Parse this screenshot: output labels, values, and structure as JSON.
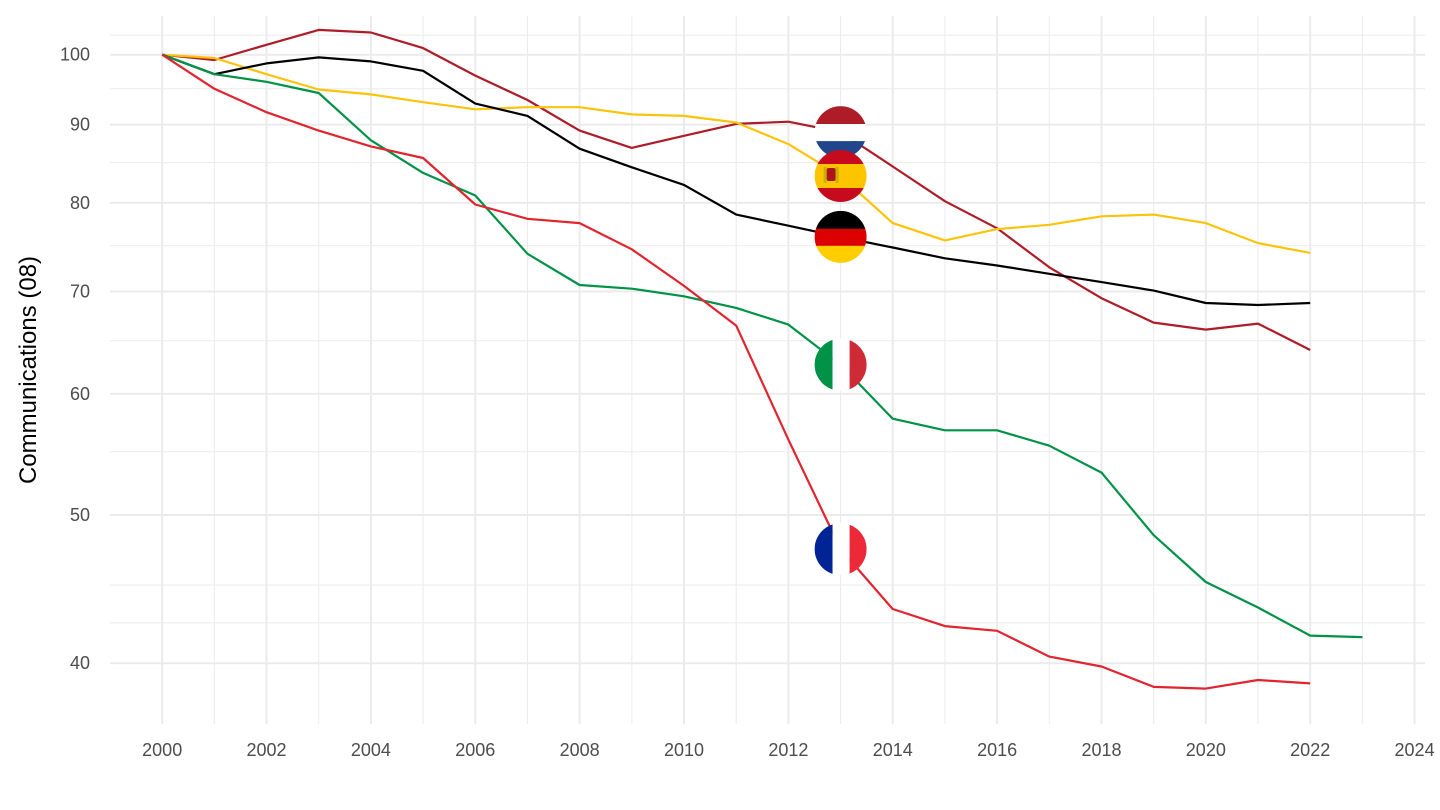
{
  "chart_data": {
    "type": "line",
    "title": "",
    "xlabel": "",
    "ylabel": "Communications (08)",
    "y_scale": "log",
    "xlim": [
      1999,
      2024.2
    ],
    "ylim": [
      36.5,
      106
    ],
    "x_ticks": [
      2000,
      2002,
      2004,
      2006,
      2008,
      2010,
      2012,
      2014,
      2016,
      2018,
      2020,
      2022,
      2024
    ],
    "y_ticks": [
      40,
      50,
      60,
      70,
      80,
      90,
      100
    ],
    "grid": true,
    "legend": "flag markers at x=2013",
    "series": [
      {
        "flag": "netherlands-flag",
        "color": "#ae1c28",
        "x": [
          2000,
          2001,
          2002,
          2003,
          2004,
          2005,
          2006,
          2007,
          2008,
          2009,
          2010,
          2011,
          2012,
          2013,
          2014,
          2015,
          2016,
          2017,
          2018,
          2019,
          2020,
          2021,
          2022
        ],
        "values": [
          100,
          99.2,
          101.5,
          103.8,
          103.4,
          101.0,
          96.9,
          93.4,
          89.2,
          86.9,
          88.5,
          90.1,
          90.4,
          89.0,
          84.5,
          80.2,
          77.0,
          72.6,
          69.3,
          66.8,
          66.1,
          66.7,
          64.1
        ]
      },
      {
        "flag": "spain-flag",
        "color": "#fcc30b",
        "x": [
          2000,
          2001,
          2002,
          2003,
          2004,
          2005,
          2006,
          2007,
          2008,
          2009,
          2010,
          2011,
          2012,
          2013,
          2014,
          2015,
          2016,
          2017,
          2018,
          2019,
          2020,
          2021,
          2022
        ],
        "values": [
          100,
          99.5,
          97.1,
          94.9,
          94.2,
          93.1,
          92.1,
          92.4,
          92.4,
          91.4,
          91.2,
          90.3,
          87.4,
          83.3,
          77.6,
          75.6,
          76.9,
          77.4,
          78.4,
          78.6,
          77.6,
          75.3,
          74.2
        ]
      },
      {
        "flag": "germany-flag",
        "color": "#000000",
        "x": [
          2000,
          2001,
          2002,
          2003,
          2004,
          2005,
          2006,
          2007,
          2008,
          2009,
          2010,
          2011,
          2012,
          2013,
          2014,
          2015,
          2016,
          2017,
          2018,
          2019,
          2020,
          2021,
          2022
        ],
        "values": [
          100,
          97.1,
          98.7,
          99.6,
          99.0,
          97.6,
          92.9,
          91.2,
          86.8,
          84.4,
          82.2,
          78.6,
          77.3,
          76.0,
          74.8,
          73.6,
          72.8,
          71.9,
          71.0,
          70.1,
          68.8,
          68.6,
          68.8
        ]
      },
      {
        "flag": "italy-flag",
        "color": "#009246",
        "x": [
          2000,
          2001,
          2002,
          2003,
          2004,
          2005,
          2006,
          2007,
          2008,
          2009,
          2010,
          2011,
          2012,
          2013,
          2014,
          2015,
          2016,
          2017,
          2018,
          2019,
          2020,
          2021,
          2022,
          2023
        ],
        "values": [
          100,
          97.1,
          96.0,
          94.4,
          87.9,
          83.7,
          80.9,
          74.1,
          70.7,
          70.3,
          69.5,
          68.3,
          66.6,
          62.7,
          57.8,
          56.8,
          56.8,
          55.5,
          53.3,
          48.5,
          45.2,
          43.5,
          41.7,
          41.6
        ]
      },
      {
        "flag": "france-flag",
        "color": "#e1242e",
        "x": [
          2000,
          2001,
          2002,
          2003,
          2004,
          2005,
          2006,
          2007,
          2008,
          2009,
          2010,
          2011,
          2012,
          2013,
          2014,
          2015,
          2016,
          2017,
          2018,
          2019,
          2020,
          2021,
          2022
        ],
        "values": [
          100,
          95.0,
          91.7,
          89.2,
          87.1,
          85.6,
          79.8,
          78.1,
          77.6,
          74.6,
          70.6,
          66.5,
          56.0,
          47.5,
          43.4,
          42.3,
          42.0,
          40.4,
          39.8,
          38.6,
          38.5,
          39.0,
          38.8
        ]
      }
    ]
  }
}
